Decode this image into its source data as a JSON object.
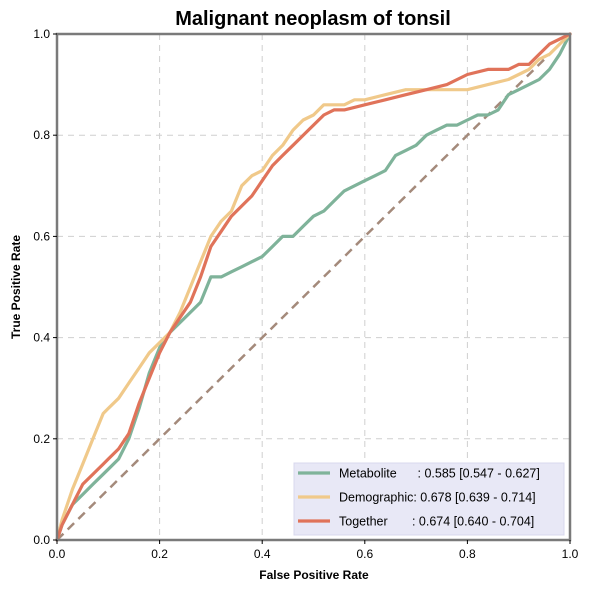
{
  "chart_data": {
    "type": "line",
    "title": "Malignant neoplasm of tonsil",
    "xlabel": "False Positive Rate",
    "ylabel": "True Positive Rate",
    "xlim": [
      0,
      1
    ],
    "ylim": [
      0,
      1
    ],
    "x_ticks": [
      "0.0",
      "0.2",
      "0.4",
      "0.6",
      "0.8",
      "1.0"
    ],
    "y_ticks": [
      "0.0",
      "0.2",
      "0.4",
      "0.6",
      "0.8",
      "1.0"
    ],
    "grid": true,
    "legend_position": "bottom-right",
    "diagonal": {
      "x": [
        0,
        1
      ],
      "y": [
        0,
        1
      ],
      "color": "#a48a7b"
    },
    "series": [
      {
        "name": "Metabolite",
        "label": "Metabolite      : 0.585 [0.547 - 0.627]",
        "color": "#7fb39a",
        "x": [
          0,
          0.01,
          0.03,
          0.05,
          0.07,
          0.09,
          0.1,
          0.12,
          0.14,
          0.16,
          0.18,
          0.2,
          0.22,
          0.25,
          0.28,
          0.3,
          0.32,
          0.34,
          0.36,
          0.38,
          0.4,
          0.42,
          0.44,
          0.46,
          0.48,
          0.5,
          0.52,
          0.54,
          0.56,
          0.58,
          0.6,
          0.62,
          0.64,
          0.66,
          0.68,
          0.7,
          0.72,
          0.74,
          0.76,
          0.78,
          0.8,
          0.82,
          0.84,
          0.86,
          0.88,
          0.9,
          0.92,
          0.94,
          0.96,
          0.98,
          1.0
        ],
        "y": [
          0,
          0.03,
          0.07,
          0.09,
          0.11,
          0.13,
          0.14,
          0.16,
          0.2,
          0.26,
          0.33,
          0.38,
          0.41,
          0.44,
          0.47,
          0.52,
          0.52,
          0.53,
          0.54,
          0.55,
          0.56,
          0.58,
          0.6,
          0.6,
          0.62,
          0.64,
          0.65,
          0.67,
          0.69,
          0.7,
          0.71,
          0.72,
          0.73,
          0.76,
          0.77,
          0.78,
          0.8,
          0.81,
          0.82,
          0.82,
          0.83,
          0.84,
          0.84,
          0.85,
          0.88,
          0.89,
          0.9,
          0.91,
          0.93,
          0.96,
          1.0
        ]
      },
      {
        "name": "Demographic",
        "label": "Demographic: 0.678 [0.639 - 0.714]",
        "color": "#f0c98a",
        "x": [
          0,
          0.01,
          0.03,
          0.05,
          0.07,
          0.09,
          0.1,
          0.12,
          0.14,
          0.16,
          0.18,
          0.2,
          0.22,
          0.24,
          0.26,
          0.28,
          0.3,
          0.32,
          0.34,
          0.36,
          0.38,
          0.4,
          0.42,
          0.44,
          0.46,
          0.48,
          0.5,
          0.52,
          0.54,
          0.56,
          0.58,
          0.6,
          0.64,
          0.68,
          0.72,
          0.76,
          0.8,
          0.84,
          0.88,
          0.9,
          0.92,
          0.94,
          0.96,
          0.98,
          1.0
        ],
        "y": [
          0,
          0.04,
          0.1,
          0.15,
          0.2,
          0.25,
          0.26,
          0.28,
          0.31,
          0.34,
          0.37,
          0.39,
          0.41,
          0.45,
          0.5,
          0.55,
          0.6,
          0.63,
          0.65,
          0.7,
          0.72,
          0.73,
          0.76,
          0.78,
          0.81,
          0.83,
          0.84,
          0.86,
          0.86,
          0.86,
          0.87,
          0.87,
          0.88,
          0.89,
          0.89,
          0.89,
          0.89,
          0.9,
          0.91,
          0.92,
          0.93,
          0.95,
          0.96,
          0.98,
          1.0
        ]
      },
      {
        "name": "Together",
        "label": "Together       : 0.674 [0.640 - 0.704]",
        "color": "#e0735a",
        "x": [
          0,
          0.01,
          0.03,
          0.05,
          0.07,
          0.09,
          0.1,
          0.12,
          0.14,
          0.16,
          0.18,
          0.2,
          0.22,
          0.24,
          0.26,
          0.28,
          0.3,
          0.32,
          0.34,
          0.36,
          0.38,
          0.4,
          0.42,
          0.44,
          0.46,
          0.48,
          0.5,
          0.52,
          0.54,
          0.56,
          0.6,
          0.64,
          0.68,
          0.72,
          0.76,
          0.8,
          0.84,
          0.88,
          0.9,
          0.92,
          0.94,
          0.96,
          0.98,
          1.0
        ],
        "y": [
          0,
          0.03,
          0.07,
          0.11,
          0.13,
          0.15,
          0.16,
          0.18,
          0.21,
          0.27,
          0.32,
          0.37,
          0.41,
          0.44,
          0.47,
          0.52,
          0.58,
          0.61,
          0.64,
          0.66,
          0.68,
          0.71,
          0.74,
          0.76,
          0.78,
          0.8,
          0.82,
          0.84,
          0.85,
          0.85,
          0.86,
          0.87,
          0.88,
          0.89,
          0.9,
          0.92,
          0.93,
          0.93,
          0.94,
          0.94,
          0.96,
          0.98,
          0.99,
          1.0
        ]
      }
    ]
  }
}
